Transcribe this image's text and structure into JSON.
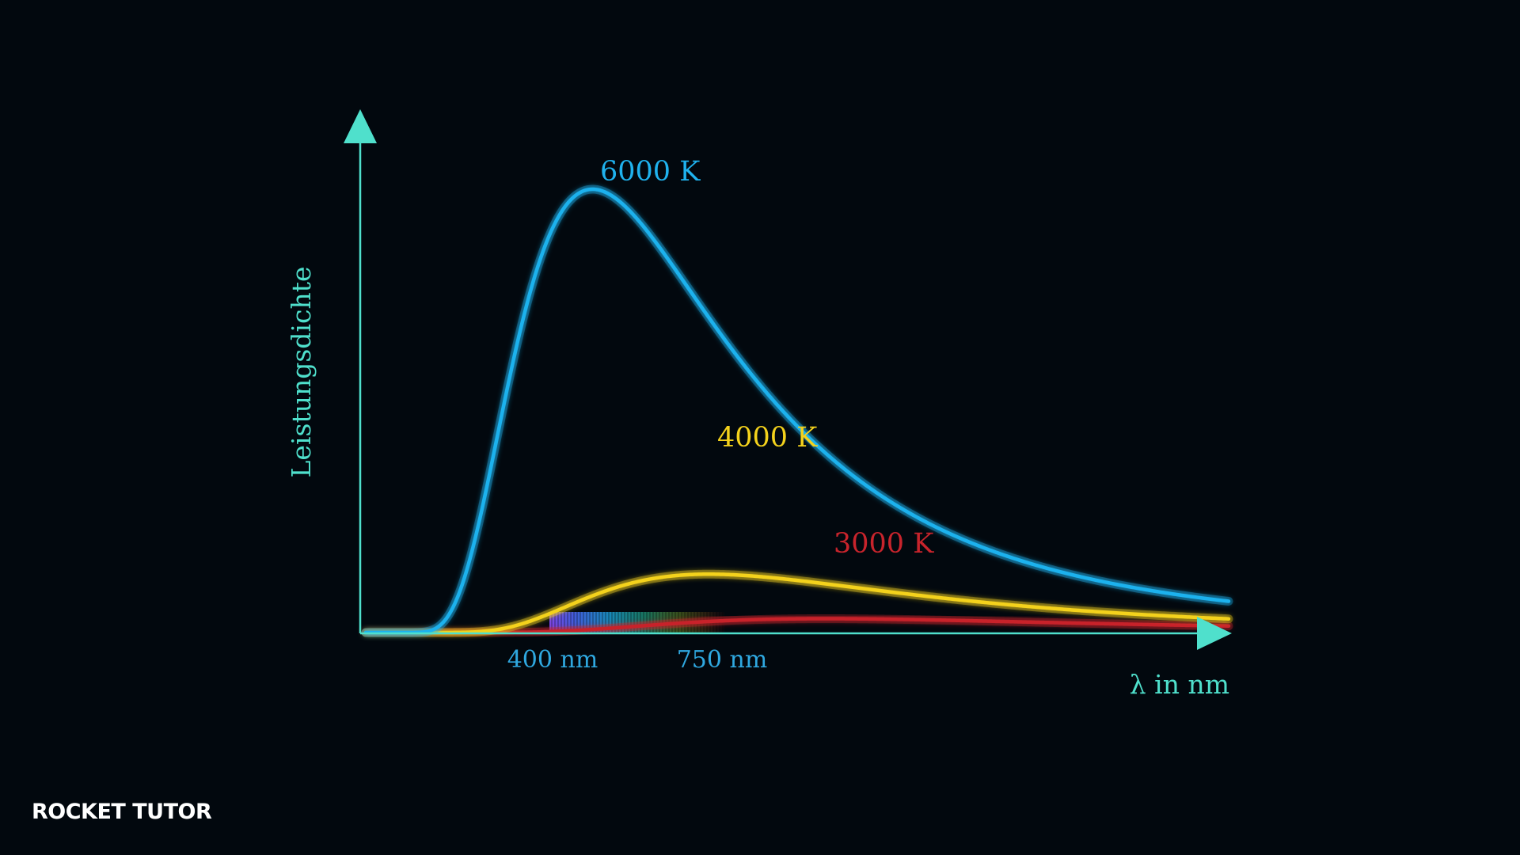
{
  "brand": {
    "logo_text": "ROCKET TUTOR"
  },
  "colors": {
    "background": "#02080e",
    "axis": "#4fe0cc",
    "curve_6000": "#1fb2ee",
    "curve_4000": "#f4d21c",
    "curve_3000": "#c8242c",
    "wavelength_labels": "#2fa8e0"
  },
  "chart_data": {
    "type": "line",
    "xlabel": "λ in nm",
    "ylabel": "Leistungsdichte",
    "x_unit": "nm",
    "xlim": [
      100,
      2400
    ],
    "y_ticks_shown": false,
    "x_ticks": [
      {
        "value": 400,
        "label": "400 nm"
      },
      {
        "value": 750,
        "label": "750 nm"
      }
    ],
    "visible_spectrum": {
      "from": 400,
      "to": 750
    },
    "series": [
      {
        "name": "6000 K",
        "temperature": 6000,
        "color": "#1fb2ee"
      },
      {
        "name": "4000 K",
        "temperature": 4000,
        "color": "#f4d21c"
      },
      {
        "name": "3000 K",
        "temperature": 3000,
        "color": "#c8242c"
      }
    ],
    "grid": false,
    "legend": "inline labels at curve peaks"
  }
}
